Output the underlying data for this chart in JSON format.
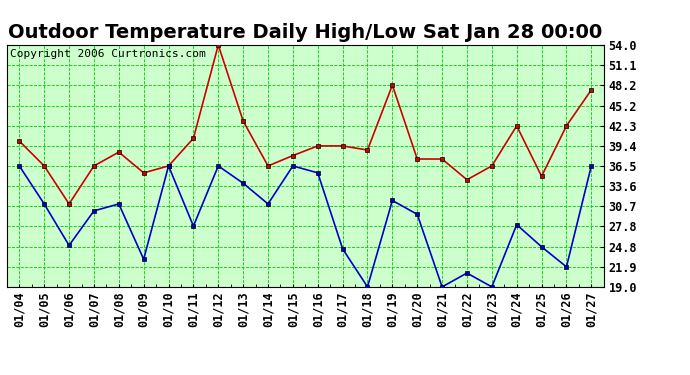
{
  "title": "Outdoor Temperature Daily High/Low Sat Jan 28 00:00",
  "copyright": "Copyright 2006 Curtronics.com",
  "dates": [
    "01/04",
    "01/05",
    "01/06",
    "01/07",
    "01/08",
    "01/09",
    "01/10",
    "01/11",
    "01/12",
    "01/13",
    "01/14",
    "01/15",
    "01/16",
    "01/17",
    "01/18",
    "01/19",
    "01/20",
    "01/21",
    "01/22",
    "01/23",
    "01/24",
    "01/25",
    "01/26",
    "01/27"
  ],
  "high_temps": [
    40.1,
    36.5,
    31.0,
    36.5,
    38.5,
    35.5,
    36.5,
    40.5,
    54.0,
    43.0,
    36.5,
    38.0,
    39.4,
    39.4,
    38.8,
    48.2,
    37.5,
    37.5,
    34.5,
    36.5,
    42.3,
    35.0,
    42.3,
    47.5
  ],
  "low_temps": [
    36.5,
    31.0,
    25.0,
    30.0,
    31.0,
    23.0,
    36.5,
    27.8,
    36.5,
    34.0,
    31.0,
    36.5,
    35.5,
    24.5,
    19.0,
    31.5,
    29.5,
    19.0,
    21.0,
    19.0,
    28.0,
    24.8,
    21.9,
    36.5
  ],
  "high_color": "#cc0000",
  "low_color": "#0000cc",
  "marker_color": "#000000",
  "background_color": "#ffffff",
  "plot_bg_color": "#ccffcc",
  "grid_color": "#00cc00",
  "title_color": "#000000",
  "ymin": 19.0,
  "ymax": 54.0,
  "yticks": [
    19.0,
    21.9,
    24.8,
    27.8,
    30.7,
    33.6,
    36.5,
    39.4,
    42.3,
    45.2,
    48.2,
    51.1,
    54.0
  ],
  "title_fontsize": 14,
  "tick_fontsize": 8.5,
  "copyright_fontsize": 8
}
